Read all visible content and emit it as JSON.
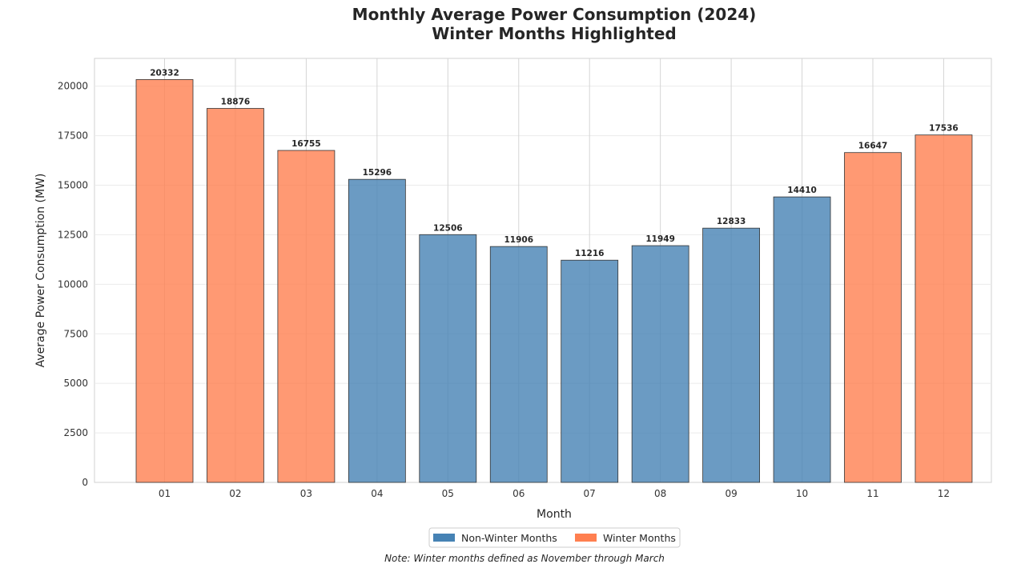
{
  "chart_data": {
    "type": "bar",
    "title_line1": "Monthly Average Power Consumption (2024)",
    "title_line2": "Winter Months Highlighted",
    "xlabel": "Month",
    "ylabel": "Average Power Consumption (MW)",
    "categories": [
      "01",
      "02",
      "03",
      "04",
      "05",
      "06",
      "07",
      "08",
      "09",
      "10",
      "11",
      "12"
    ],
    "values": [
      20332,
      18876,
      16755,
      15296,
      12506,
      11906,
      11216,
      11949,
      12833,
      14410,
      16647,
      17536
    ],
    "is_winter": [
      true,
      true,
      true,
      false,
      false,
      false,
      false,
      false,
      false,
      false,
      true,
      true
    ],
    "ylim": [
      0,
      21400
    ],
    "yticks": [
      0,
      2500,
      5000,
      7500,
      10000,
      12500,
      15000,
      17500,
      20000
    ],
    "grid": true,
    "legend": {
      "placement": "bottom-center",
      "entries": [
        {
          "label": "Non-Winter Months",
          "color": "#4682b4"
        },
        {
          "label": "Winter Months",
          "color": "#ff7f50"
        }
      ]
    },
    "note": "Note: Winter months defined as November through March",
    "colors": {
      "non_winter": "#4682b4",
      "winter": "#ff7f50"
    }
  }
}
